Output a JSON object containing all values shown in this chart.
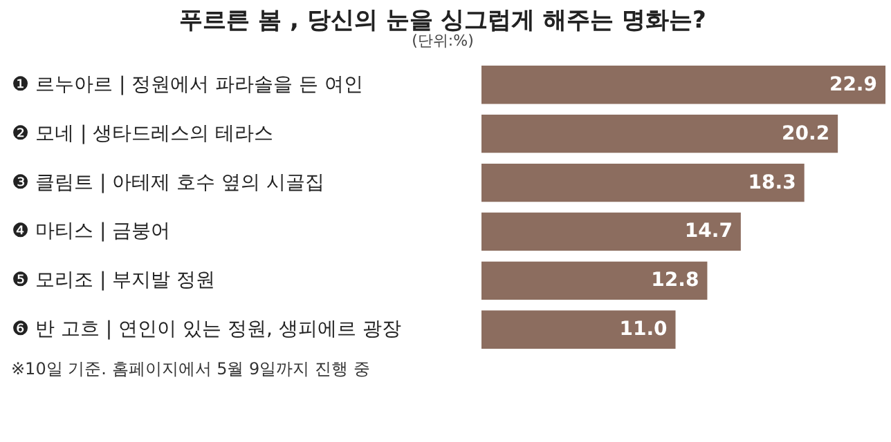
{
  "chart_data": {
    "type": "bar",
    "orientation": "horizontal",
    "title": "푸르른 봄 , 당신의 눈을 싱그럽게 해주는 명화는?",
    "subtitle": "(단위:%)",
    "categories": [
      "❶ 르누아르 | 정원에서 파라솔을 든 여인",
      "❷ 모네 | 생타드레스의 테라스",
      "❸ 클림트 | 아테제 호수 옆의 시골집",
      "❹ 마티스 | 금붕어",
      "❺ 모리조 | 부지발 정원",
      "❻ 반 고흐 | 연인이 있는 정원, 생피에르 광장"
    ],
    "values": [
      22.9,
      20.2,
      18.3,
      14.7,
      12.8,
      11.0
    ],
    "value_labels": [
      "22.9",
      "20.2",
      "18.3",
      "14.7",
      "12.8",
      "11.0"
    ],
    "color": "#8c6d5f",
    "annotations": [
      "※10일 기준. 홈페이지에서 5월 9일까지 진행 중"
    ]
  }
}
